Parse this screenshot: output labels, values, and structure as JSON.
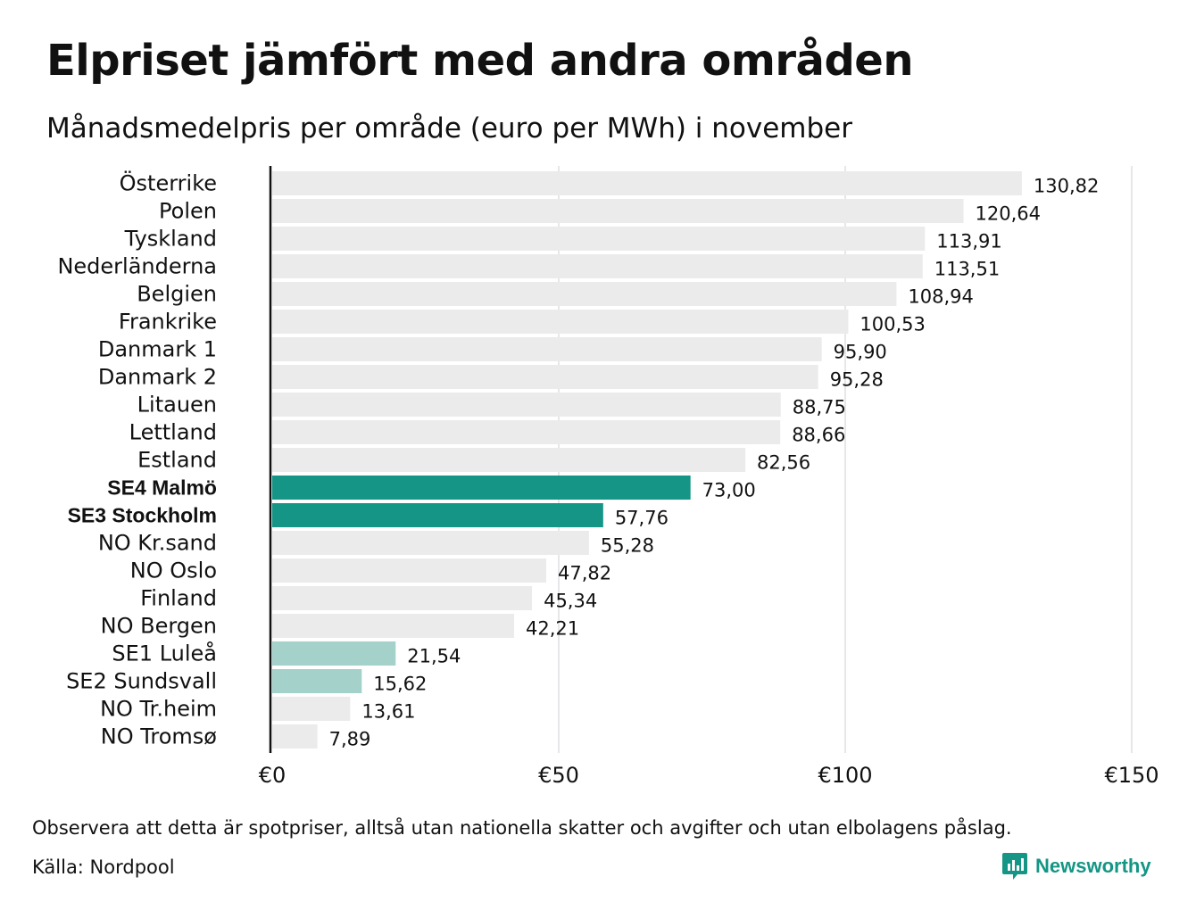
{
  "header": {
    "title": "Elpriset jämfört med andra områden",
    "subtitle": "Månadsmedelpris per område (euro per MWh) i november"
  },
  "footer": {
    "note": "Observera att detta är spotpriser, alltså utan nationella skatter och avgifter och utan elbolagens påslag.",
    "source": "Källa: Nordpool",
    "brand": "Newsworthy"
  },
  "colors": {
    "default_bar": "#ebebeb",
    "highlight_bar": "#149585",
    "light_highlight_bar": "#a5d1cb",
    "gridline": "#cfcfd4",
    "brand": "#149585"
  },
  "chart_data": {
    "type": "bar",
    "orientation": "horizontal",
    "title": "Elpriset jämfört med andra områden",
    "subtitle": "Månadsmedelpris per område (euro per MWh) i november",
    "xlim": [
      0,
      150
    ],
    "x_ticks": [
      0,
      50,
      100,
      150
    ],
    "x_tick_labels": [
      "€0",
      "€50",
      "€100",
      "€150"
    ],
    "grid": true,
    "categories": [
      "Österrike",
      "Polen",
      "Tyskland",
      "Nederländerna",
      "Belgien",
      "Frankrike",
      "Danmark  1",
      "Danmark  2",
      "Litauen",
      "Lettland",
      "Estland",
      "SE4 Malmö",
      "SE3 Stockholm",
      "NO Kr.sand",
      "NO Oslo",
      "Finland",
      "NO Bergen",
      "SE1  Luleå",
      "SE2  Sundsvall",
      "NO Tr.heim",
      "NO Tromsø"
    ],
    "values": [
      130.82,
      120.64,
      113.91,
      113.51,
      108.94,
      100.53,
      95.9,
      95.28,
      88.75,
      88.66,
      82.56,
      73.0,
      57.76,
      55.28,
      47.82,
      45.34,
      42.21,
      21.54,
      15.62,
      13.61,
      7.89
    ],
    "value_labels": [
      "130,82",
      "120,64",
      "113,91",
      "113,51",
      "108,94",
      "100,53",
      "95,90",
      "95,28",
      "88,75",
      "88,66",
      "82,56",
      "73,00",
      "57,76",
      "55,28",
      "47,82",
      "45,34",
      "42,21",
      "21,54",
      "15,62",
      "13,61",
      "7,89"
    ],
    "highlight": [
      "none",
      "none",
      "none",
      "none",
      "none",
      "none",
      "none",
      "none",
      "none",
      "none",
      "none",
      "strong",
      "strong",
      "none",
      "none",
      "none",
      "none",
      "light",
      "light",
      "none",
      "none"
    ]
  }
}
